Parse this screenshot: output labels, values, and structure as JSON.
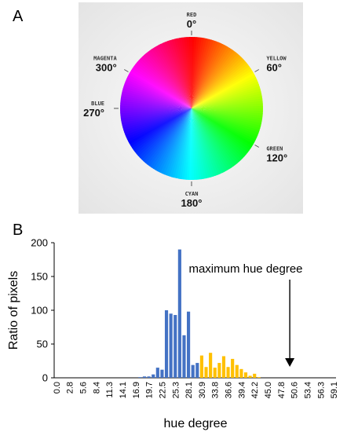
{
  "panels": {
    "a_label": "A",
    "b_label": "B"
  },
  "hue_wheel": {
    "markers": [
      {
        "name": "RED",
        "degree": "0°",
        "angle": 0
      },
      {
        "name": "YELLOW",
        "degree": "60°",
        "angle": 60
      },
      {
        "name": "GREEN",
        "degree": "120°",
        "angle": 120
      },
      {
        "name": "CYAN",
        "degree": "180°",
        "angle": 180
      },
      {
        "name": "BLUE",
        "degree": "270°",
        "angle": 270
      },
      {
        "name": "MAGENTA",
        "degree": "300°",
        "angle": 300
      }
    ]
  },
  "chart_data": {
    "type": "bar",
    "xlabel": "hue degree",
    "ylabel": "Ratio of pixels",
    "ylim": [
      0,
      200
    ],
    "yticks": [
      0,
      50,
      100,
      150,
      200
    ],
    "xticklabels": [
      "0.0",
      "2.8",
      "5.6",
      "8.4",
      "11.3",
      "14.1",
      "16.9",
      "19.7",
      "22.5",
      "25.3",
      "28.1",
      "30.9",
      "33.8",
      "36.6",
      "39.4",
      "42.2",
      "45.0",
      "47.8",
      "50.6",
      "53.4",
      "56.3",
      "59.1"
    ],
    "bin_values": [
      0,
      0,
      0,
      0,
      0,
      0,
      0,
      0,
      0,
      0,
      0,
      0,
      0,
      0,
      0,
      0,
      0,
      0,
      0,
      1,
      2,
      2,
      5,
      15,
      12,
      100,
      95,
      93,
      190,
      63,
      98,
      19,
      22,
      33,
      16,
      37,
      15,
      22,
      32,
      16,
      28,
      19,
      13,
      8,
      3,
      6,
      1,
      0,
      0,
      0,
      0,
      0,
      0,
      0,
      0,
      0,
      0,
      0,
      0,
      0,
      0,
      0,
      0,
      0
    ],
    "bin_colors": [
      "#4472c4",
      "#4472c4",
      "#4472c4",
      "#4472c4",
      "#4472c4",
      "#4472c4",
      "#4472c4",
      "#4472c4",
      "#4472c4",
      "#4472c4",
      "#4472c4",
      "#4472c4",
      "#4472c4",
      "#4472c4",
      "#4472c4",
      "#4472c4",
      "#4472c4",
      "#4472c4",
      "#4472c4",
      "#4472c4",
      "#4472c4",
      "#4472c4",
      "#4472c4",
      "#4472c4",
      "#4472c4",
      "#4472c4",
      "#4472c4",
      "#4472c4",
      "#4472c4",
      "#4472c4",
      "#4472c4",
      "#4472c4",
      "#4472c4",
      "#ffc000",
      "#ffc000",
      "#ffc000",
      "#ffc000",
      "#ffc000",
      "#ffc000",
      "#ffc000",
      "#ffc000",
      "#ffc000",
      "#ffc000",
      "#ffc000",
      "#ffc000",
      "#ffc000",
      "#ffc000",
      "#ffc000",
      "#ffc000",
      "#ffc000",
      "#ffc000",
      "#ffc000",
      "#ffc000",
      "#ffc000",
      "#ffc000",
      "#ffc000",
      "#ffc000",
      "#ffc000",
      "#ffc000",
      "#ffc000",
      "#ffc000",
      "#ffc000",
      "#ffc000",
      "#ffc000"
    ],
    "annotation": {
      "text": "maximum hue degree",
      "x_bin": 53
    },
    "colors": {
      "blue": "#4472c4",
      "orange": "#ffc000"
    },
    "grid": false
  }
}
